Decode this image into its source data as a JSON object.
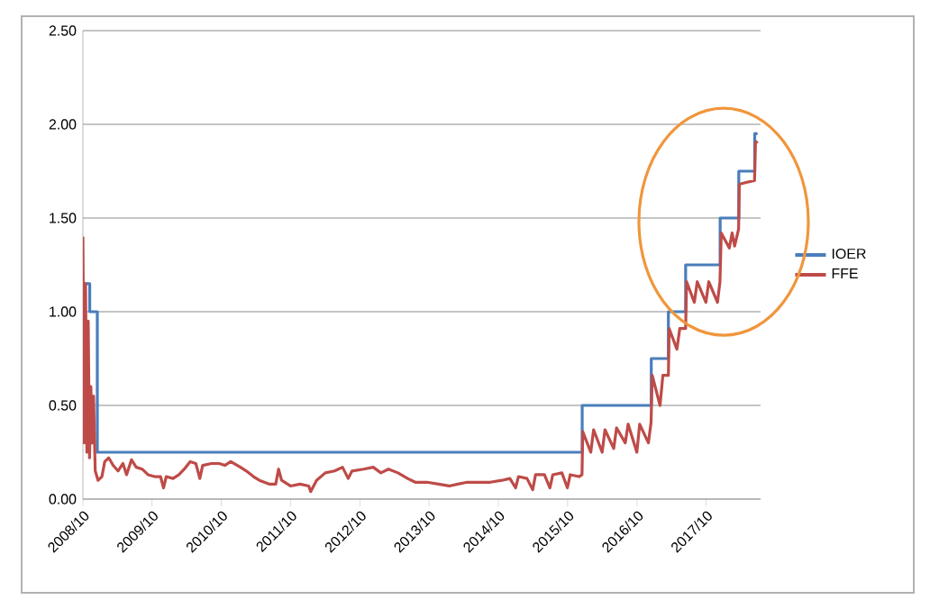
{
  "chart_data": {
    "type": "line",
    "xlim": [
      "2008-10-01",
      "2018-07-15"
    ],
    "ylim": [
      0,
      2.5
    ],
    "xticks": [
      {
        "value": "2008-10-01",
        "label": "2008/10"
      },
      {
        "value": "2009-10-01",
        "label": "2009/10"
      },
      {
        "value": "2010-10-01",
        "label": "2010/10"
      },
      {
        "value": "2011-10-01",
        "label": "2011/10"
      },
      {
        "value": "2012-10-01",
        "label": "2012/10"
      },
      {
        "value": "2013-10-01",
        "label": "2013/10"
      },
      {
        "value": "2014-10-01",
        "label": "2014/10"
      },
      {
        "value": "2015-10-01",
        "label": "2015/10"
      },
      {
        "value": "2016-10-01",
        "label": "2016/10"
      },
      {
        "value": "2017-10-01",
        "label": "2017/10"
      }
    ],
    "yticks": [
      {
        "value": 0,
        "label": "0.00"
      },
      {
        "value": 0.5,
        "label": "0.50"
      },
      {
        "value": 1,
        "label": "1.00"
      },
      {
        "value": 1.5,
        "label": "1.50"
      },
      {
        "value": 2,
        "label": "2.00"
      },
      {
        "value": 2.5,
        "label": "2.50"
      }
    ],
    "grid": "y",
    "legend": "right",
    "series": [
      {
        "name": "IOER",
        "type": "step",
        "color": "#4a7ebb",
        "x": [
          "2008-10-09",
          "2008-11-06",
          "2008-12-16",
          "2015-12-17",
          "2016-12-15",
          "2017-03-16",
          "2017-06-15",
          "2017-12-14",
          "2018-03-22",
          "2018-06-14",
          "2018-06-29"
        ],
        "values": [
          1.15,
          1.0,
          0.25,
          0.5,
          0.75,
          1.0,
          1.25,
          1.5,
          1.75,
          1.95,
          1.95
        ]
      },
      {
        "name": "FFE",
        "color": "#be4b48",
        "x": [
          "2008-10-01",
          "2008-10-08",
          "2008-10-15",
          "2008-10-22",
          "2008-10-29",
          "2008-11-05",
          "2008-11-12",
          "2008-11-19",
          "2008-11-26",
          "2008-12-05",
          "2008-12-20",
          "2009-01-10",
          "2009-01-25",
          "2009-02-15",
          "2009-03-10",
          "2009-04-05",
          "2009-05-01",
          "2009-05-20",
          "2009-06-15",
          "2009-07-10",
          "2009-08-10",
          "2009-09-10",
          "2009-10-15",
          "2009-11-15",
          "2009-12-01",
          "2009-12-15",
          "2010-01-20",
          "2010-02-20",
          "2010-03-20",
          "2010-04-20",
          "2010-05-20",
          "2010-06-10",
          "2010-06-25",
          "2010-08-10",
          "2010-09-20",
          "2010-10-20",
          "2010-11-20",
          "2011-01-10",
          "2011-02-10",
          "2011-03-20",
          "2011-04-20",
          "2011-06-10",
          "2011-07-15",
          "2011-07-30",
          "2011-08-15",
          "2011-10-01",
          "2011-11-20",
          "2012-01-05",
          "2012-01-15",
          "2012-02-15",
          "2012-04-01",
          "2012-05-20",
          "2012-07-01",
          "2012-07-31",
          "2012-08-20",
          "2012-10-20",
          "2012-12-10",
          "2013-01-20",
          "2013-03-01",
          "2013-04-20",
          "2013-06-10",
          "2013-07-20",
          "2013-09-20",
          "2013-11-20",
          "2014-01-15",
          "2014-03-01",
          "2014-04-20",
          "2014-06-20",
          "2014-08-20",
          "2014-10-20",
          "2014-12-01",
          "2014-12-31",
          "2015-01-15",
          "2015-03-01",
          "2015-03-31",
          "2015-04-15",
          "2015-06-01",
          "2015-06-30",
          "2015-07-15",
          "2015-09-01",
          "2015-09-30",
          "2015-10-15",
          "2015-12-01",
          "2015-12-16",
          "2015-12-20",
          "2016-01-31",
          "2016-02-15",
          "2016-03-31",
          "2016-04-15",
          "2016-05-31",
          "2016-06-15",
          "2016-07-31",
          "2016-08-15",
          "2016-09-30",
          "2016-10-15",
          "2016-11-30",
          "2016-12-14",
          "2016-12-20",
          "2017-01-31",
          "2017-02-15",
          "2017-03-16",
          "2017-03-20",
          "2017-04-30",
          "2017-05-15",
          "2017-06-15",
          "2017-06-20",
          "2017-07-31",
          "2017-08-15",
          "2017-09-30",
          "2017-10-15",
          "2017-11-30",
          "2017-12-13",
          "2017-12-20",
          "2018-01-31",
          "2018-02-15",
          "2018-02-28",
          "2018-03-21",
          "2018-03-25",
          "2018-04-30",
          "2018-06-13",
          "2018-06-18",
          "2018-06-29"
        ],
        "values": [
          1.4,
          0.3,
          1.15,
          0.25,
          0.95,
          0.22,
          0.6,
          0.3,
          0.55,
          0.15,
          0.1,
          0.12,
          0.2,
          0.22,
          0.18,
          0.15,
          0.19,
          0.13,
          0.21,
          0.17,
          0.16,
          0.13,
          0.12,
          0.12,
          0.06,
          0.12,
          0.11,
          0.13,
          0.16,
          0.2,
          0.19,
          0.11,
          0.18,
          0.19,
          0.19,
          0.18,
          0.2,
          0.17,
          0.15,
          0.12,
          0.1,
          0.08,
          0.08,
          0.16,
          0.1,
          0.07,
          0.08,
          0.07,
          0.04,
          0.1,
          0.14,
          0.15,
          0.17,
          0.11,
          0.15,
          0.16,
          0.17,
          0.14,
          0.16,
          0.14,
          0.11,
          0.09,
          0.09,
          0.08,
          0.07,
          0.08,
          0.09,
          0.09,
          0.09,
          0.1,
          0.11,
          0.06,
          0.12,
          0.11,
          0.05,
          0.13,
          0.13,
          0.06,
          0.13,
          0.14,
          0.06,
          0.13,
          0.12,
          0.13,
          0.36,
          0.25,
          0.37,
          0.25,
          0.37,
          0.27,
          0.38,
          0.3,
          0.4,
          0.25,
          0.4,
          0.3,
          0.41,
          0.66,
          0.5,
          0.66,
          0.66,
          0.91,
          0.8,
          0.91,
          0.91,
          1.16,
          1.05,
          1.16,
          1.05,
          1.16,
          1.05,
          1.16,
          1.42,
          1.34,
          1.42,
          1.35,
          1.44,
          1.68,
          1.69,
          1.7,
          1.9,
          1.91
        ]
      }
    ]
  }
}
